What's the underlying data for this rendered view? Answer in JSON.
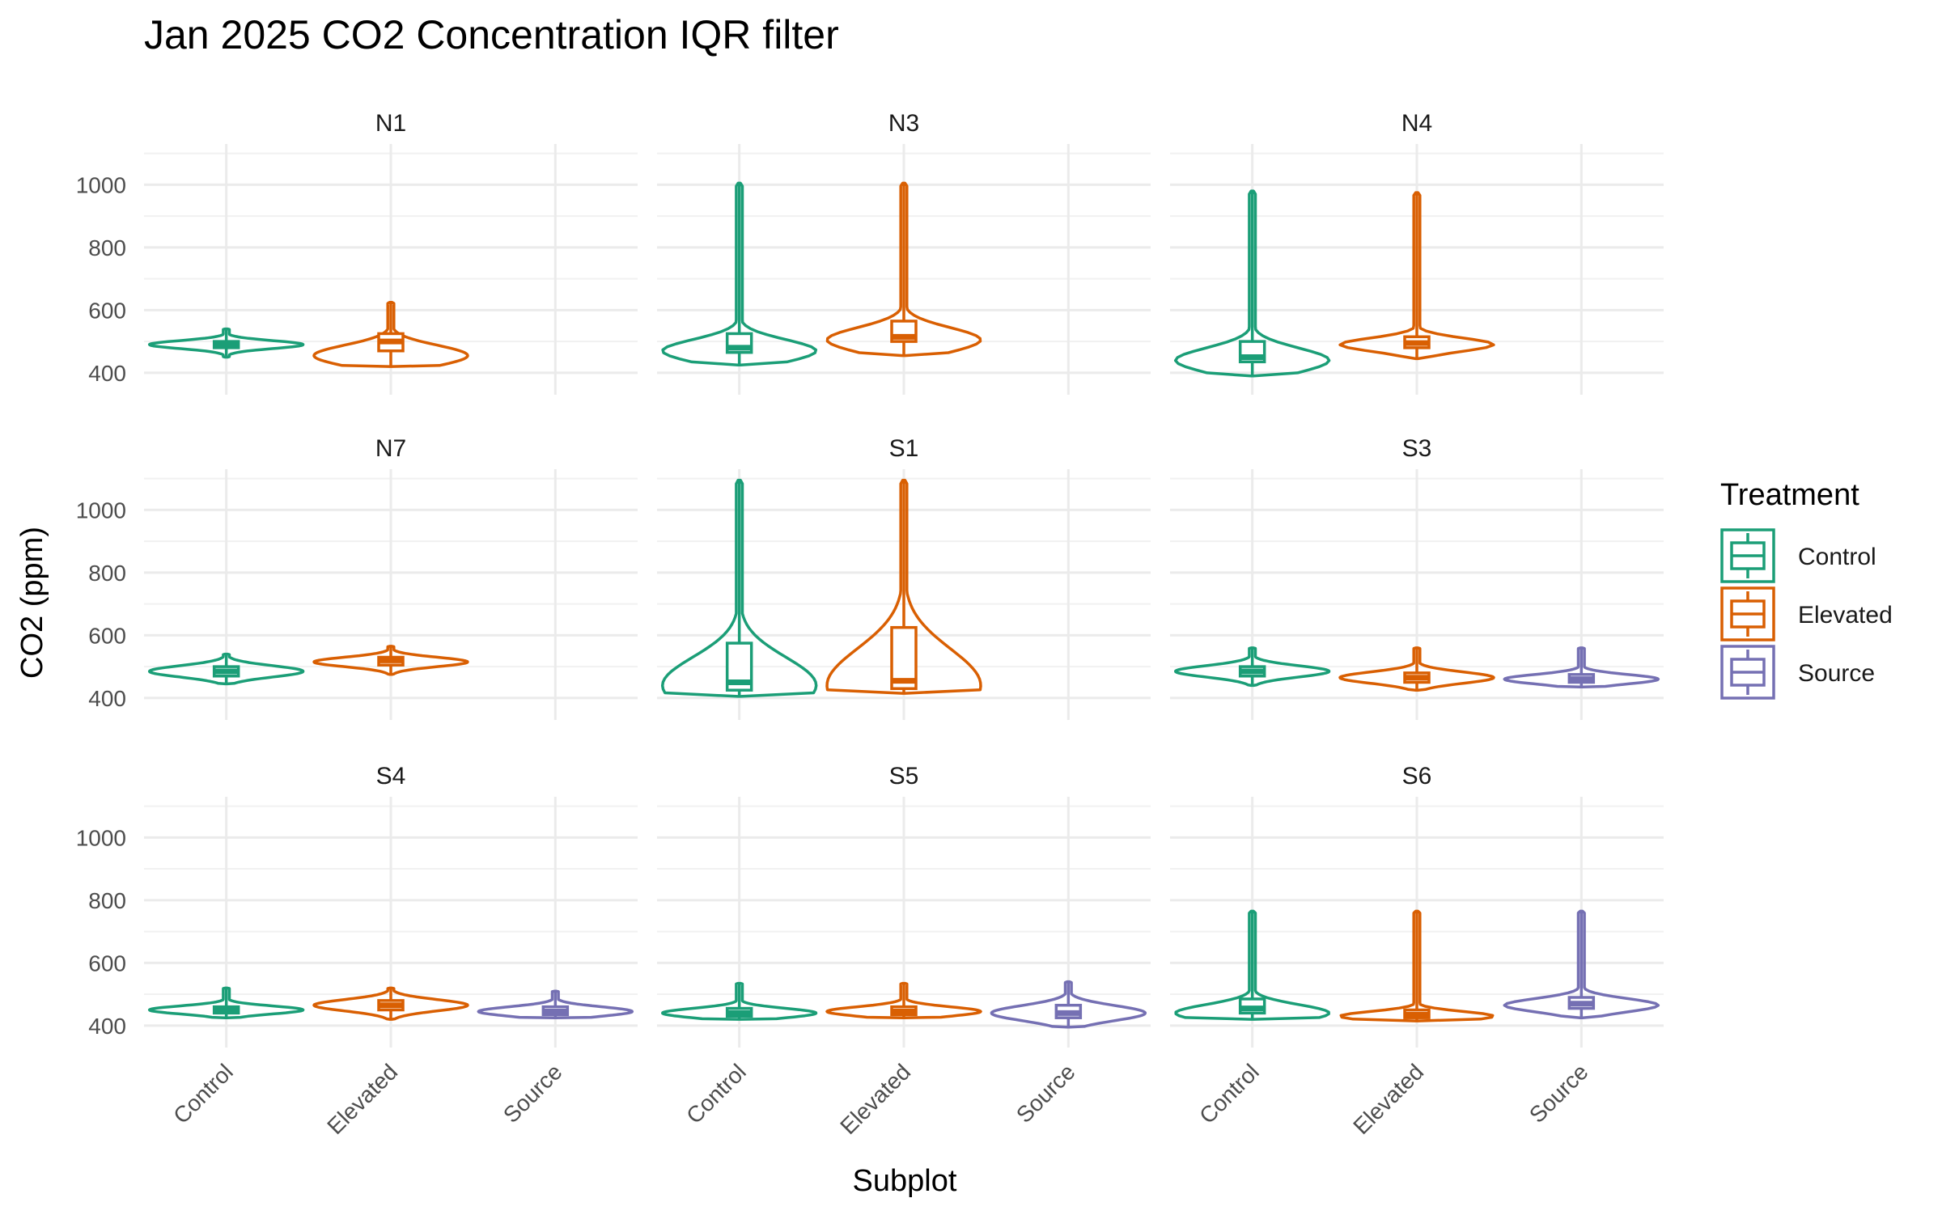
{
  "chart_data": {
    "type": "violin",
    "title": "Jan 2025 CO2 Concentration IQR filter",
    "xlabel": "Subplot",
    "ylabel": "CO2 (ppm)",
    "ylim": [
      330,
      1130
    ],
    "yticks": [
      400,
      600,
      800,
      1000
    ],
    "categories": [
      "Control",
      "Elevated",
      "Source"
    ],
    "colors": {
      "Control": "#1b9e77",
      "Elevated": "#d95f02",
      "Source": "#7570b3"
    },
    "legend": {
      "title": "Treatment",
      "position": "right",
      "entries": [
        "Control",
        "Elevated",
        "Source"
      ]
    },
    "grid": true,
    "panels": [
      {
        "name": "N1",
        "groups": [
          {
            "treatment": "Control",
            "min": 450,
            "q1": 480,
            "median": 490,
            "q3": 500,
            "max": 540,
            "mode": 490
          },
          {
            "treatment": "Elevated",
            "min": 420,
            "q1": 470,
            "median": 500,
            "q3": 525,
            "max": 625,
            "mode": 455
          }
        ]
      },
      {
        "name": "N3",
        "groups": [
          {
            "treatment": "Control",
            "min": 425,
            "q1": 465,
            "median": 480,
            "q3": 525,
            "max": 1005,
            "mode": 470
          },
          {
            "treatment": "Elevated",
            "min": 455,
            "q1": 500,
            "median": 515,
            "q3": 565,
            "max": 1005,
            "mode": 505
          }
        ]
      },
      {
        "name": "N4",
        "groups": [
          {
            "treatment": "Control",
            "min": 390,
            "q1": 435,
            "median": 450,
            "q3": 500,
            "max": 980,
            "mode": 440
          },
          {
            "treatment": "Elevated",
            "min": 445,
            "q1": 480,
            "median": 495,
            "q3": 515,
            "max": 975,
            "mode": 490
          }
        ]
      },
      {
        "name": "N7",
        "groups": [
          {
            "treatment": "Control",
            "min": 445,
            "q1": 470,
            "median": 485,
            "q3": 500,
            "max": 540,
            "mode": 485
          },
          {
            "treatment": "Elevated",
            "min": 475,
            "q1": 505,
            "median": 520,
            "q3": 530,
            "max": 565,
            "mode": 515
          }
        ]
      },
      {
        "name": "S1",
        "groups": [
          {
            "treatment": "Control",
            "min": 405,
            "q1": 425,
            "median": 450,
            "q3": 575,
            "max": 1095,
            "mode": 440
          },
          {
            "treatment": "Elevated",
            "min": 415,
            "q1": 430,
            "median": 455,
            "q3": 625,
            "max": 1095,
            "mode": 440
          }
        ]
      },
      {
        "name": "S3",
        "groups": [
          {
            "treatment": "Control",
            "min": 440,
            "q1": 470,
            "median": 485,
            "q3": 500,
            "max": 560,
            "mode": 485
          },
          {
            "treatment": "Elevated",
            "min": 425,
            "q1": 450,
            "median": 465,
            "q3": 480,
            "max": 560,
            "mode": 465
          },
          {
            "treatment": "Source",
            "min": 435,
            "q1": 450,
            "median": 460,
            "q3": 475,
            "max": 560,
            "mode": 460
          }
        ]
      },
      {
        "name": "S4",
        "groups": [
          {
            "treatment": "Control",
            "min": 425,
            "q1": 440,
            "median": 450,
            "q3": 460,
            "max": 520,
            "mode": 450
          },
          {
            "treatment": "Elevated",
            "min": 420,
            "q1": 450,
            "median": 465,
            "q3": 480,
            "max": 520,
            "mode": 465
          },
          {
            "treatment": "Source",
            "min": 425,
            "q1": 435,
            "median": 445,
            "q3": 460,
            "max": 510,
            "mode": 445
          }
        ]
      },
      {
        "name": "S5",
        "groups": [
          {
            "treatment": "Control",
            "min": 420,
            "q1": 430,
            "median": 440,
            "q3": 455,
            "max": 535,
            "mode": 440
          },
          {
            "treatment": "Elevated",
            "min": 425,
            "q1": 435,
            "median": 445,
            "q3": 460,
            "max": 535,
            "mode": 445
          },
          {
            "treatment": "Source",
            "min": 395,
            "q1": 425,
            "median": 440,
            "q3": 465,
            "max": 540,
            "mode": 440
          }
        ]
      },
      {
        "name": "S6",
        "groups": [
          {
            "treatment": "Control",
            "min": 420,
            "q1": 440,
            "median": 455,
            "q3": 485,
            "max": 765,
            "mode": 440
          },
          {
            "treatment": "Elevated",
            "min": 415,
            "q1": 425,
            "median": 435,
            "q3": 450,
            "max": 765,
            "mode": 430
          },
          {
            "treatment": "Source",
            "min": 425,
            "q1": 455,
            "median": 470,
            "q3": 490,
            "max": 765,
            "mode": 465
          }
        ]
      }
    ]
  }
}
